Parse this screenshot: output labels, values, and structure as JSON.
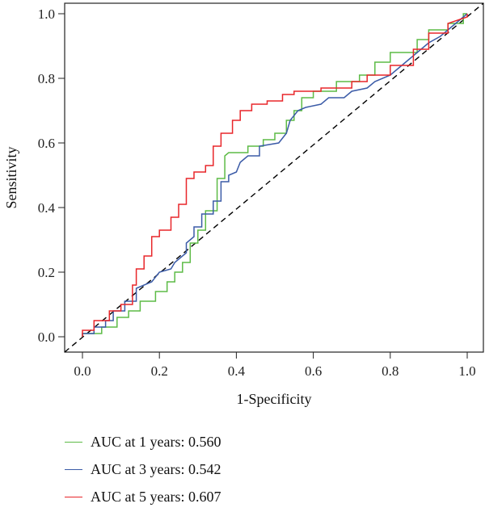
{
  "chart_data": {
    "type": "line",
    "xlabel": "1-Specificity",
    "ylabel": "Sensitivity",
    "xlim": [
      0,
      1
    ],
    "ylim": [
      0,
      1
    ],
    "xticks": [
      "0.0",
      "0.2",
      "0.4",
      "0.6",
      "0.8",
      "1.0"
    ],
    "yticks": [
      "0.0",
      "0.2",
      "0.4",
      "0.6",
      "0.8",
      "1.0"
    ],
    "grid": false,
    "legend_position": "bottom-left",
    "diagonal_reference": true,
    "series": [
      {
        "name": "AUC at 1 years: 0.560",
        "color": "#5dbb46",
        "points": [
          [
            0,
            0
          ],
          [
            0,
            0.01
          ],
          [
            0.05,
            0.01
          ],
          [
            0.05,
            0.03
          ],
          [
            0.09,
            0.03
          ],
          [
            0.09,
            0.06
          ],
          [
            0.12,
            0.06
          ],
          [
            0.12,
            0.08
          ],
          [
            0.15,
            0.08
          ],
          [
            0.15,
            0.11
          ],
          [
            0.19,
            0.11
          ],
          [
            0.19,
            0.14
          ],
          [
            0.22,
            0.14
          ],
          [
            0.22,
            0.17
          ],
          [
            0.24,
            0.17
          ],
          [
            0.24,
            0.2
          ],
          [
            0.26,
            0.2
          ],
          [
            0.26,
            0.23
          ],
          [
            0.28,
            0.23
          ],
          [
            0.28,
            0.29
          ],
          [
            0.3,
            0.29
          ],
          [
            0.3,
            0.33
          ],
          [
            0.32,
            0.33
          ],
          [
            0.32,
            0.39
          ],
          [
            0.35,
            0.39
          ],
          [
            0.35,
            0.49
          ],
          [
            0.37,
            0.49
          ],
          [
            0.37,
            0.56
          ],
          [
            0.38,
            0.57
          ],
          [
            0.43,
            0.57
          ],
          [
            0.43,
            0.59
          ],
          [
            0.47,
            0.59
          ],
          [
            0.47,
            0.61
          ],
          [
            0.5,
            0.61
          ],
          [
            0.5,
            0.63
          ],
          [
            0.53,
            0.63
          ],
          [
            0.53,
            0.67
          ],
          [
            0.55,
            0.67
          ],
          [
            0.55,
            0.7
          ],
          [
            0.57,
            0.7
          ],
          [
            0.57,
            0.74
          ],
          [
            0.6,
            0.74
          ],
          [
            0.6,
            0.76
          ],
          [
            0.66,
            0.76
          ],
          [
            0.66,
            0.79
          ],
          [
            0.72,
            0.79
          ],
          [
            0.72,
            0.81
          ],
          [
            0.76,
            0.81
          ],
          [
            0.76,
            0.85
          ],
          [
            0.8,
            0.85
          ],
          [
            0.8,
            0.88
          ],
          [
            0.87,
            0.88
          ],
          [
            0.87,
            0.92
          ],
          [
            0.9,
            0.92
          ],
          [
            0.9,
            0.95
          ],
          [
            0.95,
            0.95
          ],
          [
            0.95,
            0.97
          ],
          [
            0.99,
            0.97
          ],
          [
            0.99,
            1.0
          ],
          [
            1,
            1
          ]
        ]
      },
      {
        "name": "AUC at 3 years: 0.542",
        "color": "#3b5ba7",
        "points": [
          [
            0,
            0
          ],
          [
            0,
            0.01
          ],
          [
            0.03,
            0.01
          ],
          [
            0.03,
            0.03
          ],
          [
            0.06,
            0.03
          ],
          [
            0.06,
            0.05
          ],
          [
            0.08,
            0.05
          ],
          [
            0.08,
            0.08
          ],
          [
            0.11,
            0.08
          ],
          [
            0.11,
            0.11
          ],
          [
            0.14,
            0.11
          ],
          [
            0.14,
            0.15
          ],
          [
            0.18,
            0.17
          ],
          [
            0.2,
            0.2
          ],
          [
            0.23,
            0.21
          ],
          [
            0.24,
            0.23
          ],
          [
            0.27,
            0.26
          ],
          [
            0.27,
            0.29
          ],
          [
            0.29,
            0.31
          ],
          [
            0.29,
            0.34
          ],
          [
            0.31,
            0.34
          ],
          [
            0.31,
            0.38
          ],
          [
            0.34,
            0.38
          ],
          [
            0.34,
            0.42
          ],
          [
            0.36,
            0.42
          ],
          [
            0.36,
            0.48
          ],
          [
            0.38,
            0.48
          ],
          [
            0.38,
            0.5
          ],
          [
            0.4,
            0.51
          ],
          [
            0.41,
            0.54
          ],
          [
            0.43,
            0.56
          ],
          [
            0.46,
            0.56
          ],
          [
            0.46,
            0.59
          ],
          [
            0.51,
            0.6
          ],
          [
            0.53,
            0.63
          ],
          [
            0.54,
            0.67
          ],
          [
            0.56,
            0.7
          ],
          [
            0.58,
            0.71
          ],
          [
            0.62,
            0.72
          ],
          [
            0.64,
            0.74
          ],
          [
            0.68,
            0.74
          ],
          [
            0.7,
            0.76
          ],
          [
            0.74,
            0.77
          ],
          [
            0.76,
            0.79
          ],
          [
            0.8,
            0.81
          ],
          [
            0.82,
            0.83
          ],
          [
            0.85,
            0.86
          ],
          [
            0.87,
            0.88
          ],
          [
            0.9,
            0.91
          ],
          [
            0.93,
            0.93
          ],
          [
            0.95,
            0.95
          ],
          [
            0.98,
            0.98
          ],
          [
            1,
            1
          ]
        ]
      },
      {
        "name": "AUC at 5 years: 0.607",
        "color": "#e8262a",
        "points": [
          [
            0,
            0
          ],
          [
            0,
            0.02
          ],
          [
            0.03,
            0.02
          ],
          [
            0.03,
            0.05
          ],
          [
            0.07,
            0.05
          ],
          [
            0.07,
            0.08
          ],
          [
            0.1,
            0.08
          ],
          [
            0.1,
            0.1
          ],
          [
            0.13,
            0.1
          ],
          [
            0.13,
            0.16
          ],
          [
            0.14,
            0.16
          ],
          [
            0.14,
            0.21
          ],
          [
            0.16,
            0.21
          ],
          [
            0.16,
            0.25
          ],
          [
            0.18,
            0.25
          ],
          [
            0.18,
            0.31
          ],
          [
            0.2,
            0.31
          ],
          [
            0.2,
            0.33
          ],
          [
            0.23,
            0.33
          ],
          [
            0.23,
            0.37
          ],
          [
            0.25,
            0.37
          ],
          [
            0.25,
            0.41
          ],
          [
            0.27,
            0.41
          ],
          [
            0.27,
            0.49
          ],
          [
            0.29,
            0.49
          ],
          [
            0.29,
            0.51
          ],
          [
            0.32,
            0.51
          ],
          [
            0.32,
            0.53
          ],
          [
            0.34,
            0.53
          ],
          [
            0.34,
            0.59
          ],
          [
            0.36,
            0.59
          ],
          [
            0.36,
            0.63
          ],
          [
            0.39,
            0.63
          ],
          [
            0.39,
            0.67
          ],
          [
            0.41,
            0.67
          ],
          [
            0.41,
            0.7
          ],
          [
            0.44,
            0.7
          ],
          [
            0.44,
            0.72
          ],
          [
            0.48,
            0.72
          ],
          [
            0.48,
            0.73
          ],
          [
            0.52,
            0.73
          ],
          [
            0.52,
            0.75
          ],
          [
            0.55,
            0.75
          ],
          [
            0.55,
            0.76
          ],
          [
            0.62,
            0.76
          ],
          [
            0.62,
            0.77
          ],
          [
            0.7,
            0.77
          ],
          [
            0.7,
            0.79
          ],
          [
            0.74,
            0.79
          ],
          [
            0.74,
            0.81
          ],
          [
            0.8,
            0.81
          ],
          [
            0.8,
            0.84
          ],
          [
            0.86,
            0.84
          ],
          [
            0.86,
            0.89
          ],
          [
            0.9,
            0.89
          ],
          [
            0.9,
            0.94
          ],
          [
            0.95,
            0.94
          ],
          [
            0.95,
            0.97
          ],
          [
            1,
            0.99
          ],
          [
            1,
            1
          ]
        ]
      }
    ]
  }
}
